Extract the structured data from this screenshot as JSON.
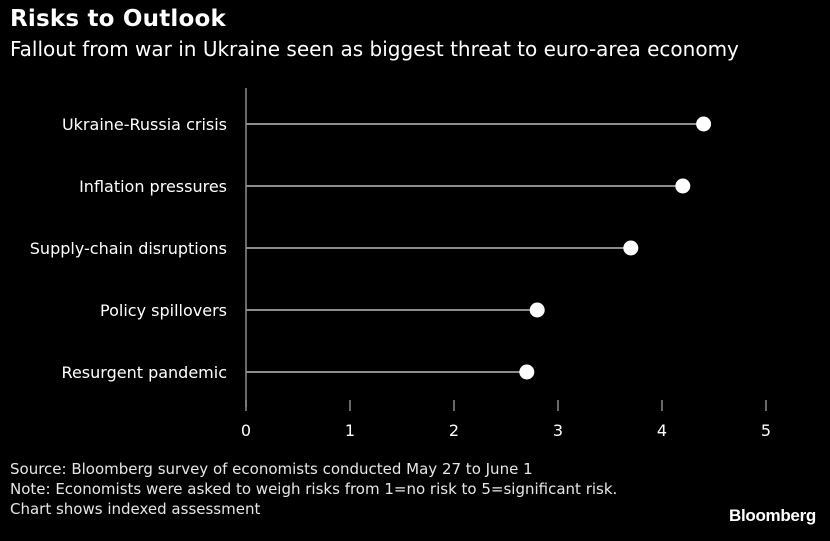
{
  "header": {
    "title": "Risks to Outlook",
    "subtitle": "Fallout from war in Ukraine seen as biggest threat to euro-area economy"
  },
  "chart_data": {
    "type": "dot",
    "categories": [
      "Ukraine-Russia crisis",
      "Inflation pressures",
      "Supply-chain disruptions",
      "Policy spillovers",
      "Resurgent pandemic"
    ],
    "values": [
      4.4,
      4.2,
      3.7,
      2.8,
      2.7
    ],
    "xlim": [
      0,
      5
    ],
    "xticks": [
      0,
      1,
      2,
      3,
      4,
      5
    ],
    "colors": {
      "background": "#000000",
      "dot": "#ffffff",
      "line": "#8c8c8c",
      "text": "#ffffff"
    }
  },
  "footer": {
    "source": "Source: Bloomberg survey of economists conducted May 27 to June 1",
    "note_line1": "Note: Economists were asked to weigh risks from 1=no risk to 5=significant risk.",
    "note_line2": "Chart shows indexed assessment",
    "brand": "Bloomberg"
  }
}
